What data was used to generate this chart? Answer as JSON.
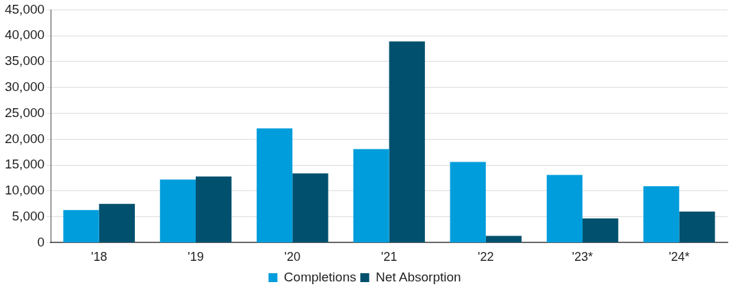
{
  "chart_data": {
    "type": "bar",
    "categories": [
      "'18",
      "'19",
      "'20",
      "'21",
      "'22",
      "'23*",
      "'24*"
    ],
    "series": [
      {
        "name": "Completions",
        "color": "#009ddc",
        "values": [
          6300,
          12200,
          22100,
          18100,
          15600,
          13100,
          10900
        ]
      },
      {
        "name": "Net Absorption",
        "color": "#00506e",
        "values": [
          7500,
          12800,
          13400,
          38900,
          1300,
          4700,
          6000
        ]
      }
    ],
    "ylim": [
      0,
      45000
    ],
    "yticks": [
      0,
      {
        "value": 5000,
        "label": "5,000"
      },
      {
        "value": 10000,
        "label": "10,000"
      },
      {
        "value": 15000,
        "label": "15,000"
      },
      {
        "value": 20000,
        "label": "20,000"
      },
      {
        "value": 25000,
        "label": "25,000"
      },
      {
        "value": 30000,
        "label": "30,000"
      },
      {
        "value": 35000,
        "label": "35,000"
      },
      {
        "value": 40000,
        "label": "40,000"
      },
      {
        "value": 45000,
        "label": "45,000"
      }
    ],
    "grid": "y",
    "legend": "bottom"
  }
}
